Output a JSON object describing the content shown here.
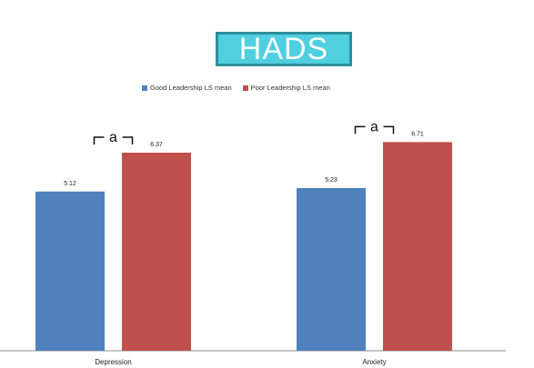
{
  "title": "HADS",
  "colors": {
    "good": "#4f81bd",
    "poor": "#c0504d",
    "title_bg": "#4fcfe0",
    "title_border": "#2d8f99"
  },
  "chart_data": {
    "type": "bar",
    "title": "HADS",
    "categories": [
      "Depression",
      "Anxiety"
    ],
    "series": [
      {
        "name": "Good Leadership LS mean",
        "values": [
          5.12,
          5.23
        ],
        "labels": [
          "5.12",
          "5.23"
        ]
      },
      {
        "name": "Poor Leadership LS mean",
        "values": [
          6.37,
          6.71
        ],
        "labels": [
          "6.37",
          "6.71"
        ]
      }
    ],
    "annotations": [
      {
        "category": "Depression",
        "text": "a"
      },
      {
        "category": "Anxiety",
        "text": "a"
      }
    ],
    "ylim": [
      0,
      7.5
    ],
    "grid": false,
    "legend": "top"
  }
}
